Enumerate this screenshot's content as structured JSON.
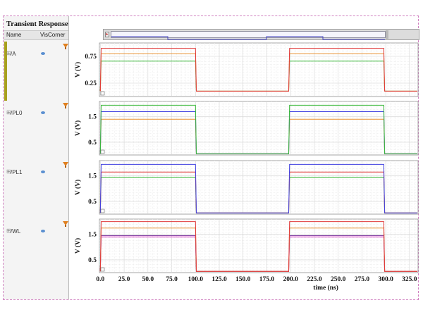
{
  "panel": {
    "title": "Transient Response",
    "col_name": "Name",
    "col_vis": "Vis",
    "col_corner": "Corner",
    "signals": [
      {
        "name": "/A"
      },
      {
        "name": "/PL0"
      },
      {
        "name": "/PL1"
      },
      {
        "name": "/WL"
      }
    ]
  },
  "colors": {
    "red": "#e03838",
    "green": "#38b838",
    "orange": "#e89030",
    "blue": "#4040e0",
    "magenta": "#d030c0",
    "purple": "#8040a0"
  },
  "chart_data": {
    "type": "line",
    "xlabel": "time (ns)",
    "x_ticks": [
      "0.0",
      "25.0",
      "50.0",
      "75.0",
      "100.0",
      "125.0",
      "150.0",
      "175.0",
      "200.0",
      "225.0",
      "250.0",
      "275.0",
      "300.0",
      "325.0"
    ],
    "x_tick_values": [
      0,
      25,
      50,
      75,
      100,
      125,
      150,
      175,
      200,
      225,
      250,
      275,
      300,
      325
    ],
    "xlim": [
      -1,
      334
    ],
    "panels": [
      {
        "signal": "/A",
        "ylabel": "V (V)",
        "y_ticks": [
          "0.75",
          "0.25"
        ],
        "y_tick_values": [
          0.75,
          0.25
        ],
        "ylim": [
          0.0,
          1.0
        ],
        "series": [
          {
            "color": "#e03838",
            "high": 0.9,
            "low": 0.1
          },
          {
            "color": "#e89030",
            "high": 0.8,
            "low": 0.1
          },
          {
            "color": "#38b838",
            "high": 0.66,
            "low": 0.1
          }
        ],
        "pulse_high_intervals": [
          [
            0,
            100
          ],
          [
            198,
            298
          ]
        ]
      },
      {
        "signal": "/PL0",
        "ylabel": "V (V)",
        "y_ticks": [
          "1.5",
          "0.5"
        ],
        "y_tick_values": [
          1.5,
          0.5
        ],
        "ylim": [
          0.0,
          2.1
        ],
        "series": [
          {
            "color": "#38b838",
            "high": 1.95,
            "low": 0.05
          },
          {
            "color": "#4040e0",
            "high": 1.7,
            "low": 0.05
          },
          {
            "color": "#e89030",
            "high": 1.4,
            "low": 0.05
          }
        ],
        "pulse_high_intervals": [
          [
            0,
            100
          ],
          [
            198,
            298
          ]
        ]
      },
      {
        "signal": "/PL1",
        "ylabel": "V (V)",
        "y_ticks": [
          "1.5",
          "0.5"
        ],
        "y_tick_values": [
          1.5,
          0.5
        ],
        "ylim": [
          0.0,
          2.1
        ],
        "series": [
          {
            "color": "#4040e0",
            "high": 1.95,
            "low": 0.05
          },
          {
            "color": "#e03838",
            "high": 1.65,
            "low": 0.05
          },
          {
            "color": "#38b838",
            "high": 1.45,
            "low": 0.05
          }
        ],
        "pulse_high_intervals": [
          [
            0,
            100
          ],
          [
            198,
            298
          ]
        ]
      },
      {
        "signal": "/WL",
        "ylabel": "V (V)",
        "y_ticks": [
          "1.5",
          "0.5"
        ],
        "y_tick_values": [
          1.5,
          0.5
        ],
        "ylim": [
          0.0,
          2.1
        ],
        "series": [
          {
            "color": "#e03838",
            "high": 2.0,
            "low": 0.05
          },
          {
            "color": "#e89030",
            "high": 1.75,
            "low": 0.05
          },
          {
            "color": "#8040a0",
            "high": 1.45,
            "low": 0.05
          },
          {
            "color": "#d030c0",
            "high": 1.4,
            "low": 0.05
          }
        ],
        "pulse_high_intervals": [
          [
            0,
            100
          ],
          [
            198,
            298
          ]
        ]
      }
    ]
  }
}
